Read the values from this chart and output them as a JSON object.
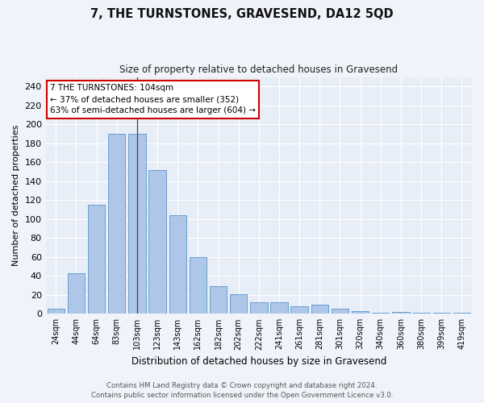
{
  "title": "7, THE TURNSTONES, GRAVESEND, DA12 5QD",
  "subtitle": "Size of property relative to detached houses in Gravesend",
  "xlabel": "Distribution of detached houses by size in Gravesend",
  "ylabel": "Number of detached properties",
  "bar_color": "#aec6e8",
  "bar_edge_color": "#6aa0d0",
  "background_color": "#e8eef7",
  "grid_color": "#ffffff",
  "fig_background": "#f0f4fa",
  "categories": [
    "24sqm",
    "44sqm",
    "64sqm",
    "83sqm",
    "103sqm",
    "123sqm",
    "143sqm",
    "162sqm",
    "182sqm",
    "202sqm",
    "222sqm",
    "241sqm",
    "261sqm",
    "281sqm",
    "301sqm",
    "320sqm",
    "340sqm",
    "360sqm",
    "380sqm",
    "399sqm",
    "419sqm"
  ],
  "values": [
    5,
    43,
    115,
    190,
    190,
    152,
    104,
    60,
    29,
    21,
    12,
    12,
    8,
    10,
    5,
    3,
    1,
    2,
    1,
    1,
    1
  ],
  "ylim": [
    0,
    250
  ],
  "yticks": [
    0,
    20,
    40,
    60,
    80,
    100,
    120,
    140,
    160,
    180,
    200,
    220,
    240
  ],
  "property_bar_index": 4,
  "annotation_title": "7 THE TURNSTONES: 104sqm",
  "annotation_line1": "← 37% of detached houses are smaller (352)",
  "annotation_line2": "63% of semi-detached houses are larger (604) →",
  "annotation_box_color": "#ffffff",
  "annotation_box_edge": "#cc0000",
  "marker_line_color": "#444444",
  "footer_line1": "Contains HM Land Registry data © Crown copyright and database right 2024.",
  "footer_line2": "Contains public sector information licensed under the Open Government Licence v3.0."
}
